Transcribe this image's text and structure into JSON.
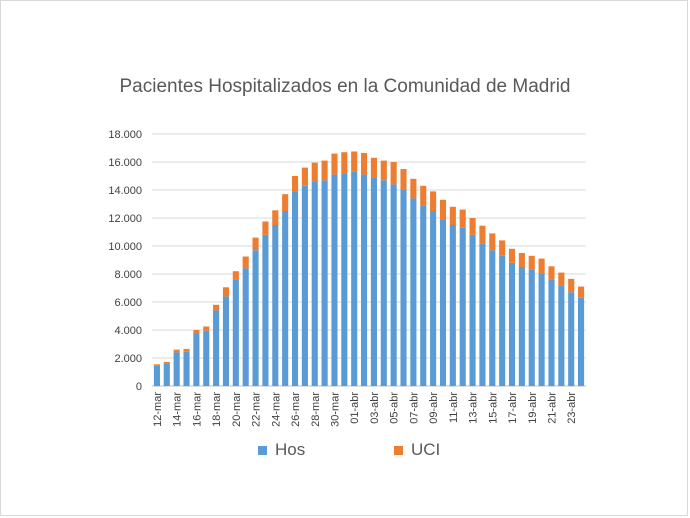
{
  "chart_data": {
    "type": "bar",
    "stacked": true,
    "title": "Pacientes Hospitalizados en la Comunidad de Madrid",
    "xlabel": "",
    "ylabel": "",
    "ylim": [
      0,
      18000
    ],
    "yticks": [
      0,
      2000,
      4000,
      6000,
      8000,
      10000,
      12000,
      14000,
      16000,
      18000
    ],
    "ytick_labels": [
      "0",
      "2.000",
      "4.000",
      "6.000",
      "8.000",
      "10.000",
      "12.000",
      "14.000",
      "16.000",
      "18.000"
    ],
    "grid": true,
    "legend_position": "bottom",
    "categories": [
      "12-mar",
      "13-mar",
      "14-mar",
      "15-mar",
      "16-mar",
      "17-mar",
      "18-mar",
      "19-mar",
      "20-mar",
      "21-mar",
      "22-mar",
      "23-mar",
      "24-mar",
      "25-mar",
      "26-mar",
      "27-mar",
      "28-mar",
      "29-mar",
      "30-mar",
      "31-mar",
      "01-abr",
      "02-abr",
      "03-abr",
      "04-abr",
      "05-abr",
      "06-abr",
      "07-abr",
      "08-abr",
      "09-abr",
      "10-abr",
      "11-abr",
      "12-abr",
      "13-abr",
      "14-abr",
      "15-abr",
      "16-abr",
      "17-abr",
      "18-abr",
      "19-abr",
      "20-abr",
      "21-abr",
      "22-abr",
      "23-abr",
      "24-abr"
    ],
    "x_tick_labels": [
      "12-mar",
      "14-mar",
      "16-mar",
      "18-mar",
      "20-mar",
      "22-mar",
      "24-mar",
      "26-mar",
      "28-mar",
      "30-mar",
      "01-abr",
      "03-abr",
      "05-abr",
      "07-abr",
      "09-abr",
      "11-abr",
      "13-abr",
      "15-abr",
      "17-abr",
      "19-abr",
      "21-abr",
      "23-abr"
    ],
    "series": [
      {
        "name": "Hos",
        "color": "#5b9bd5",
        "values": [
          1450,
          1600,
          2400,
          2450,
          3750,
          3950,
          5400,
          6400,
          7600,
          8400,
          9700,
          10800,
          11500,
          12500,
          13900,
          14300,
          14600,
          14700,
          15100,
          15200,
          15300,
          15100,
          14900,
          14700,
          14400,
          14000,
          13400,
          12900,
          12500,
          11900,
          11500,
          11300,
          10800,
          10200,
          9700,
          9300,
          8800,
          8500,
          8300,
          8000,
          7600,
          7200,
          6700,
          6300
        ]
      },
      {
        "name": "UCI",
        "color": "#ed7d31",
        "values": [
          100,
          120,
          200,
          200,
          250,
          300,
          400,
          650,
          600,
          850,
          900,
          950,
          1050,
          1200,
          1100,
          1300,
          1350,
          1400,
          1500,
          1500,
          1450,
          1550,
          1400,
          1400,
          1600,
          1500,
          1400,
          1400,
          1400,
          1400,
          1300,
          1300,
          1200,
          1250,
          1200,
          1100,
          1000,
          1000,
          1000,
          1100,
          950,
          900,
          950,
          800
        ]
      }
    ]
  }
}
